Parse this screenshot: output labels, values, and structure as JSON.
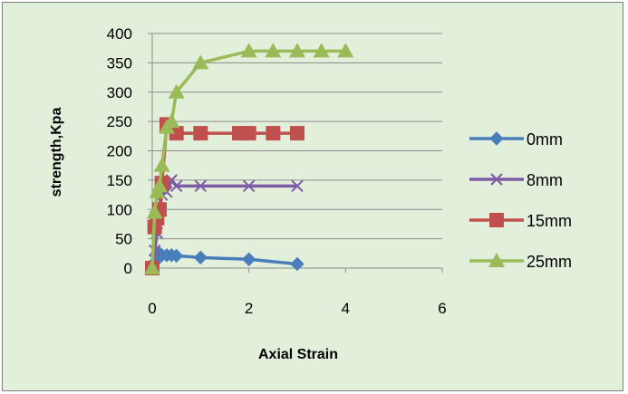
{
  "chart_data": {
    "type": "scatter",
    "title": "",
    "xlabel": "Axial Strain",
    "ylabel": "strength,Kpa",
    "xlim": [
      0,
      6
    ],
    "ylim": [
      0,
      400
    ],
    "xticks": [
      0,
      2,
      4,
      6
    ],
    "yticks": [
      0,
      50,
      100,
      150,
      200,
      250,
      300,
      350,
      400
    ],
    "grid": "horizontal",
    "legend_position": "right",
    "series": [
      {
        "name": "0mm",
        "color": "#4a7ebb",
        "marker": "diamond",
        "x": [
          0,
          0.05,
          0.1,
          0.15,
          0.2,
          0.3,
          0.4,
          0.5,
          1,
          2,
          3
        ],
        "y": [
          0,
          10,
          20,
          25,
          22,
          22,
          22,
          21,
          18,
          15,
          7
        ]
      },
      {
        "name": "8mm",
        "color": "#7e5ba5",
        "marker": "x",
        "x": [
          0,
          0.05,
          0.1,
          0.15,
          0.2,
          0.3,
          0.4,
          0.5,
          1,
          2,
          3
        ],
        "y": [
          0,
          30,
          60,
          100,
          125,
          130,
          150,
          140,
          140,
          140,
          140
        ]
      },
      {
        "name": "15mm",
        "color": "#c0504d",
        "marker": "square",
        "x": [
          0,
          0.05,
          0.1,
          0.15,
          0.2,
          0.3,
          0.5,
          1,
          1.8,
          2,
          2.5,
          3
        ],
        "y": [
          0,
          70,
          85,
          100,
          145,
          245,
          230,
          230,
          230,
          230,
          230,
          230
        ]
      },
      {
        "name": "25mm",
        "color": "#9bbb59",
        "marker": "triangle",
        "x": [
          0,
          0.05,
          0.1,
          0.15,
          0.2,
          0.3,
          0.4,
          0.5,
          1,
          2,
          2.5,
          3,
          3.5,
          4
        ],
        "y": [
          0,
          95,
          130,
          140,
          175,
          240,
          250,
          300,
          350,
          370,
          370,
          370,
          370,
          370
        ]
      }
    ]
  }
}
